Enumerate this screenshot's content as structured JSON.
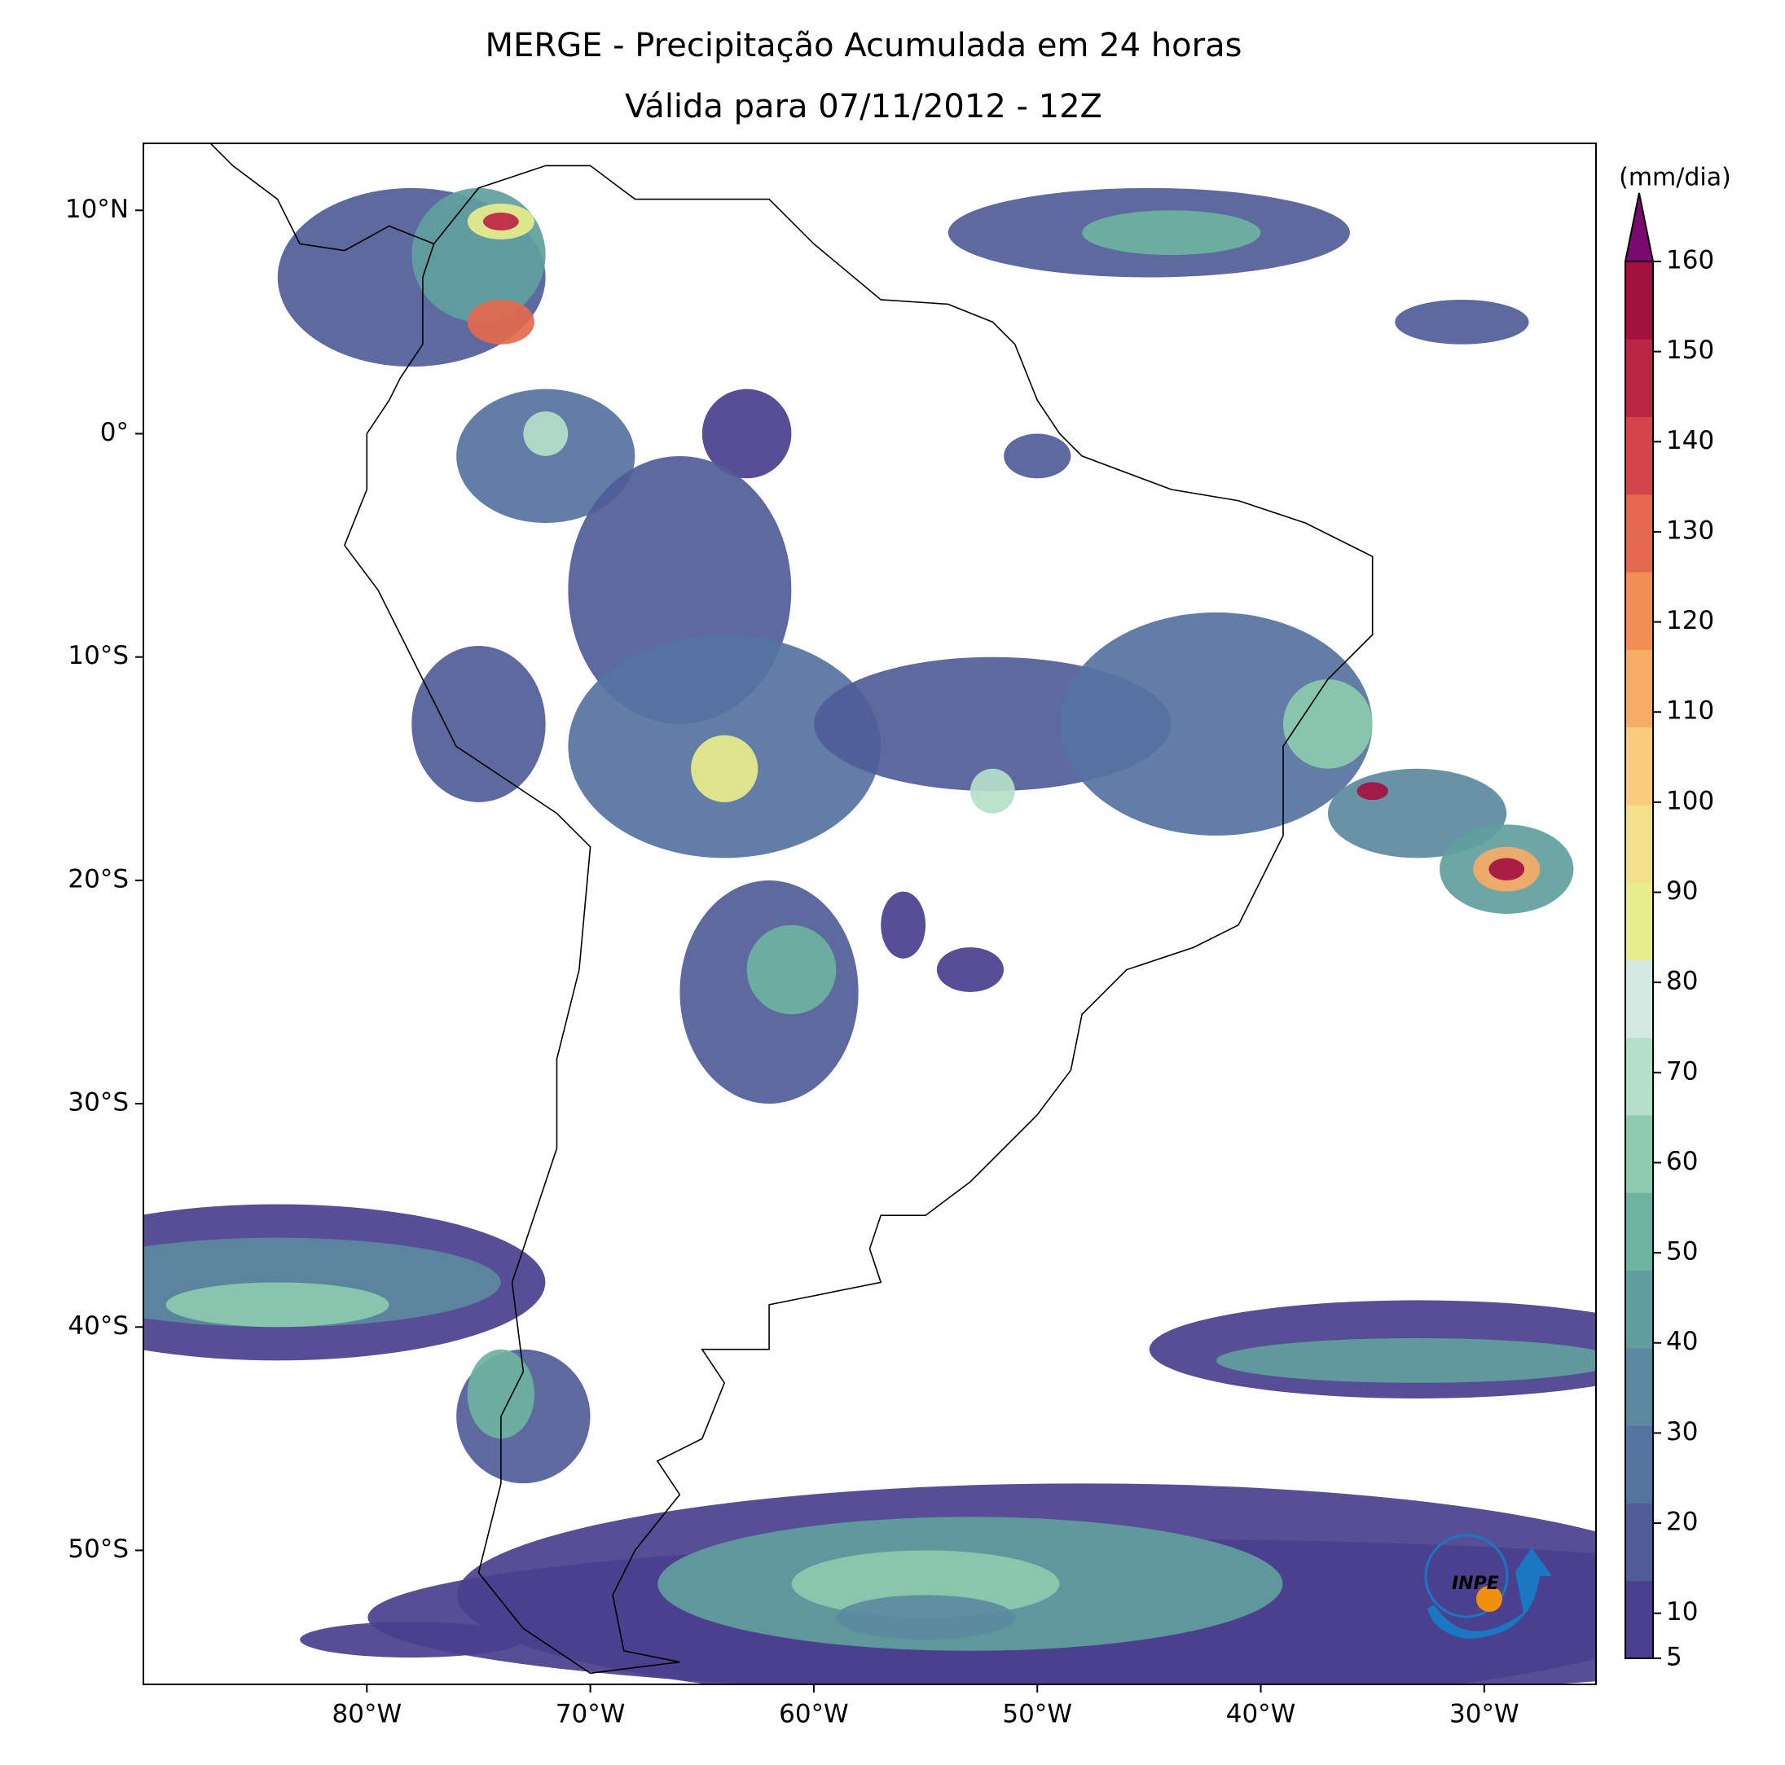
{
  "title": "MERGE - Precipitação Acumulada em 24 horas",
  "subtitle": "Válida para 07/11/2012 - 12Z",
  "map": {
    "xlim": [
      -90,
      -25
    ],
    "ylim": [
      -56,
      13
    ],
    "xticks": [
      {
        "value": -80,
        "label": "80°W"
      },
      {
        "value": -70,
        "label": "70°W"
      },
      {
        "value": -60,
        "label": "60°W"
      },
      {
        "value": -50,
        "label": "50°W"
      },
      {
        "value": -40,
        "label": "40°W"
      },
      {
        "value": -30,
        "label": "30°W"
      }
    ],
    "yticks": [
      {
        "value": 10,
        "label": "10°N"
      },
      {
        "value": 0,
        "label": "0°"
      },
      {
        "value": -10,
        "label": "10°S"
      },
      {
        "value": -20,
        "label": "20°S"
      },
      {
        "value": -30,
        "label": "30°S"
      },
      {
        "value": -40,
        "label": "40°S"
      },
      {
        "value": -50,
        "label": "50°S"
      }
    ]
  },
  "colorbar": {
    "label": "(mm/dia)",
    "lim": [
      5,
      160
    ],
    "ticks": [
      5,
      10,
      20,
      30,
      40,
      50,
      60,
      70,
      80,
      90,
      100,
      110,
      120,
      130,
      140,
      150,
      160
    ],
    "colors": [
      "#4a3f8c",
      "#4f5c97",
      "#55739f",
      "#5b8aa0",
      "#5fa09e",
      "#6cb49f",
      "#8ccbae",
      "#b4dfc8",
      "#d4e9e1",
      "#e8ed8c",
      "#f3e08a",
      "#f8cc7b",
      "#f6ad66",
      "#f08e55",
      "#e36a4c",
      "#d2454a",
      "#bb2544",
      "#a3113f"
    ],
    "extend_color": "#7b0a6e"
  },
  "logo": "INPE"
}
